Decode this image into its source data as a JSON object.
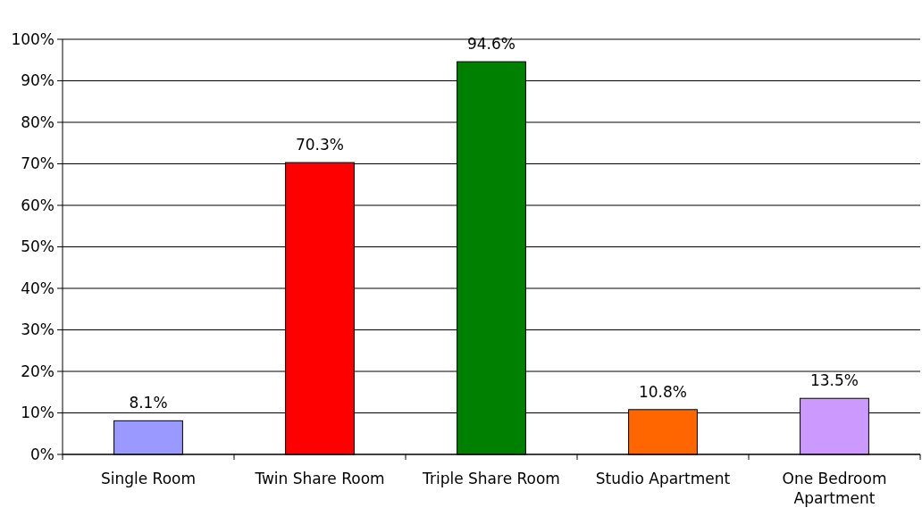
{
  "chart_data": {
    "type": "bar",
    "categories": [
      "Single Room",
      "Twin Share Room",
      "Triple Share Room",
      "Studio Apartment",
      "One Bedroom Apartment"
    ],
    "values": [
      8.1,
      70.3,
      94.6,
      10.8,
      13.5
    ],
    "colors": [
      "#9999ff",
      "#ff0000",
      "#008000",
      "#ff6600",
      "#cc99ff"
    ],
    "value_labels": [
      "8.1%",
      "70.3%",
      "94.6%",
      "10.8%",
      "13.5%"
    ],
    "ylim": [
      0,
      100
    ],
    "yticks": [
      {
        "value": 0,
        "label": "0%"
      },
      {
        "value": 10,
        "label": "10%"
      },
      {
        "value": 20,
        "label": "20%"
      },
      {
        "value": 30,
        "label": "30%"
      },
      {
        "value": 40,
        "label": "40%"
      },
      {
        "value": 50,
        "label": "50%"
      },
      {
        "value": 60,
        "label": "60%"
      },
      {
        "value": 70,
        "label": "70%"
      },
      {
        "value": 80,
        "label": "80%"
      },
      {
        "value": 90,
        "label": "90%"
      },
      {
        "value": 100,
        "label": "100%"
      }
    ],
    "grid": "y"
  }
}
